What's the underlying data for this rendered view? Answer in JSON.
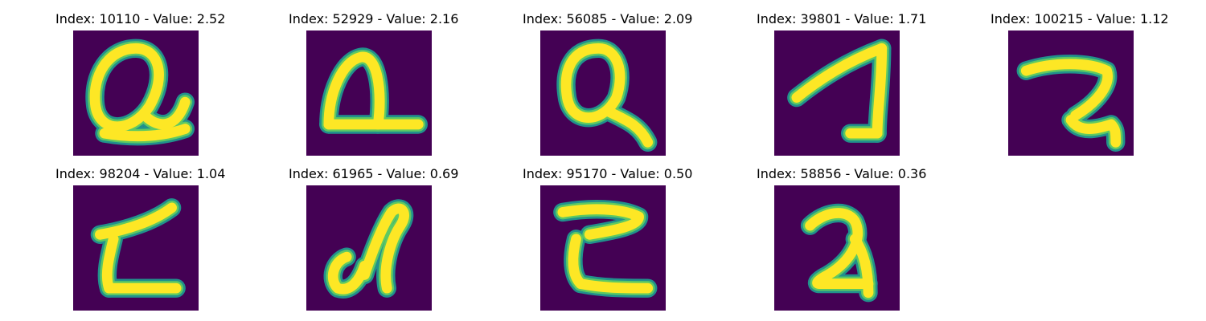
{
  "colors": {
    "background": "#440154",
    "stroke_outer": "#21918c",
    "stroke_mid": "#5ec962",
    "stroke_core": "#fde725"
  },
  "panels": [
    {
      "title": "Index: 10110 - Value: 2.52"
    },
    {
      "title": "Index: 52929 - Value: 2.16"
    },
    {
      "title": "Index: 56085 - Value: 2.09"
    },
    {
      "title": "Index: 39801 - Value: 1.71"
    },
    {
      "title": "Index: 100215 - Value: 1.12"
    },
    {
      "title": "Index: 98204 - Value: 1.04"
    },
    {
      "title": "Index: 61965 - Value: 0.69"
    },
    {
      "title": "Index: 95170 - Value: 0.50"
    },
    {
      "title": "Index: 58856 - Value: 0.36"
    }
  ]
}
